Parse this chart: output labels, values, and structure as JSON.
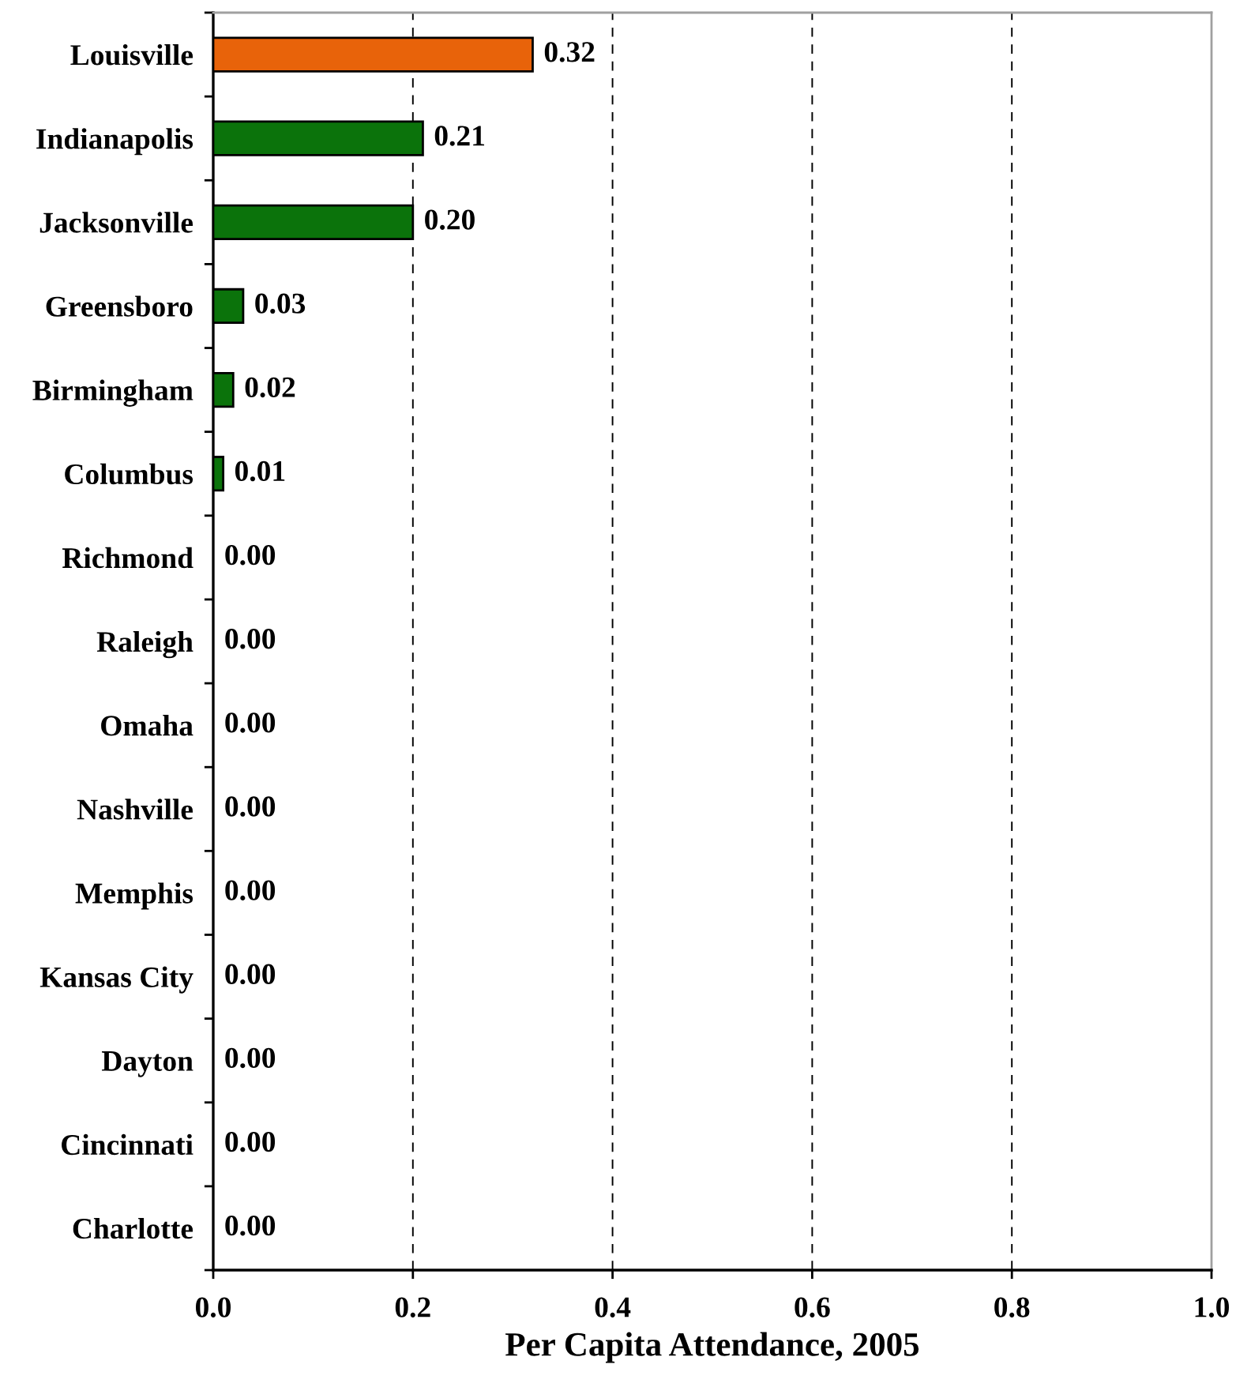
{
  "chart_data": {
    "type": "bar",
    "orientation": "horizontal",
    "xlabel": "Per Capita Attendance, 2005",
    "categories": [
      "Louisville",
      "Indianapolis",
      "Jacksonville",
      "Greensboro",
      "Birmingham",
      "Columbus",
      "Richmond",
      "Raleigh",
      "Omaha",
      "Nashville",
      "Memphis",
      "Kansas City",
      "Dayton",
      "Cincinnati",
      "Charlotte"
    ],
    "values": [
      0.32,
      0.21,
      0.2,
      0.03,
      0.02,
      0.01,
      0,
      0,
      0,
      0,
      0,
      0,
      0,
      0,
      0
    ],
    "colors": [
      "#e8630a",
      "#0b730b",
      "#0b730b",
      "#0b730b",
      "#0b730b",
      "#0b730b",
      "#0b730b",
      "#0b730b",
      "#0b730b",
      "#0b730b",
      "#0b730b",
      "#0b730b",
      "#0b730b",
      "#0b730b",
      "#0b730b"
    ],
    "value_labels": [
      "0.32",
      "0.21",
      "0.20",
      "0.03",
      "0.02",
      "0.01",
      "0.00",
      "0.00",
      "0.00",
      "0.00",
      "0.00",
      "0.00",
      "0.00",
      "0.00",
      "0.00"
    ],
    "xlim": [
      0,
      1
    ],
    "xticks": [
      {
        "value": 0,
        "label": "0.0"
      },
      0.2,
      0.4,
      0.6,
      0.8,
      {
        "value": 1,
        "label": "1.0"
      }
    ],
    "grid": "x"
  }
}
